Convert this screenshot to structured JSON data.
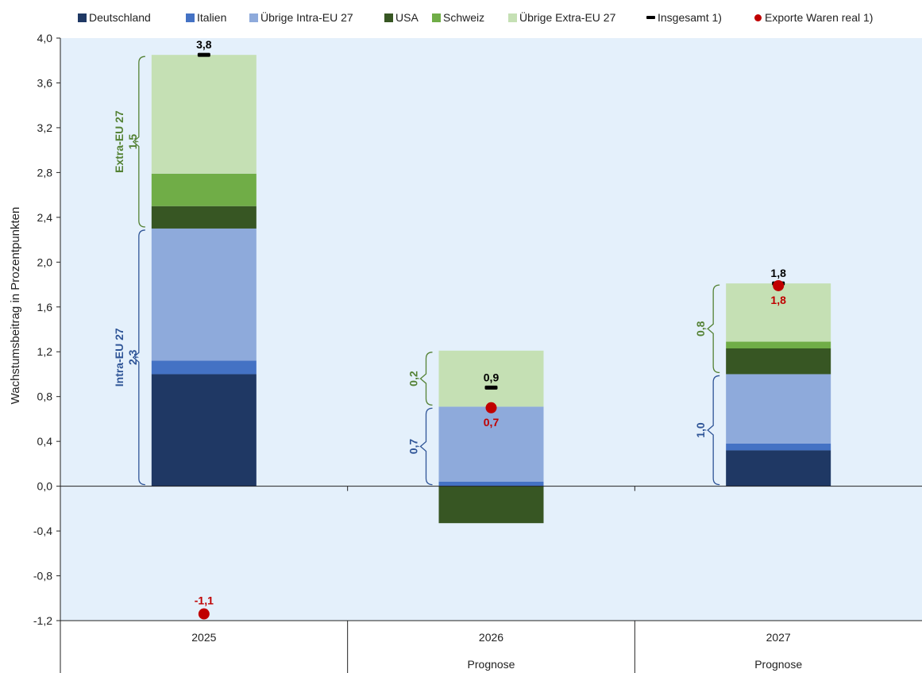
{
  "chart_data": {
    "type": "bar",
    "stacked": true,
    "ylabel": "Wachstumsbeitrag in Prozentpunkten",
    "ylim": [
      -1.2,
      4.0
    ],
    "yticks": [
      "-1,2",
      "-0,8",
      "-0,4",
      "0,0",
      "0,4",
      "0,8",
      "1,2",
      "1,6",
      "2,0",
      "2,4",
      "2,8",
      "3,2",
      "3,6",
      "4,0"
    ],
    "ytick_values": [
      -1.2,
      -0.8,
      -0.4,
      0.0,
      0.4,
      0.8,
      1.2,
      1.6,
      2.0,
      2.4,
      2.8,
      3.2,
      3.6,
      4.0
    ],
    "categories": [
      "2025",
      "2026",
      "2027"
    ],
    "category_sublabels": [
      "",
      "Prognose",
      "Prognose"
    ],
    "grid": false,
    "legend_position": "top",
    "series": [
      {
        "name": "Deutschland",
        "color": "#1f3864",
        "values": [
          1.0,
          0.0,
          0.32
        ]
      },
      {
        "name": "Italien",
        "color": "#4472c4",
        "values": [
          0.12,
          0.04,
          0.06
        ]
      },
      {
        "name": "Übrige Intra-EU 27",
        "color": "#8eaadb",
        "values": [
          1.18,
          0.67,
          0.62
        ]
      },
      {
        "name": "USA",
        "color": "#375623",
        "values": [
          0.2,
          -0.33,
          0.23
        ]
      },
      {
        "name": "Schweiz",
        "color": "#70ad47",
        "values": [
          0.29,
          0.0,
          0.06
        ]
      },
      {
        "name": "Übrige Extra-EU 27",
        "color": "#c5e0b4",
        "values": [
          1.06,
          0.5,
          0.52
        ]
      }
    ],
    "totals": {
      "name": "Insgesamt 1)",
      "color": "#000000",
      "values": [
        3.85,
        0.88,
        1.81
      ],
      "labels": [
        "3,8",
        "0,9",
        "1,8"
      ]
    },
    "exports": {
      "name": "Exporte Waren real 1)",
      "color": "#c00000",
      "values": [
        -1.14,
        0.7,
        1.79
      ],
      "labels": [
        "-1,1",
        "0,7",
        "1,8"
      ]
    },
    "groups": [
      {
        "category": "2025",
        "name": "Intra-EU 27",
        "value": "2,3",
        "color": "#2f5597",
        "from": 0.0,
        "to": 2.3
      },
      {
        "category": "2025",
        "name": "Extra-EU 27",
        "value": "1,5",
        "color": "#548235",
        "from": 2.3,
        "to": 3.85
      },
      {
        "category": "2026",
        "name": "",
        "value": "0,7",
        "color": "#2f5597",
        "from": 0.0,
        "to": 0.71
      },
      {
        "category": "2026",
        "name": "",
        "value": "0,2",
        "color": "#548235",
        "from": 0.71,
        "to": 1.21
      },
      {
        "category": "2027",
        "name": "",
        "value": "1,0",
        "color": "#2f5597",
        "from": 0.0,
        "to": 1.0
      },
      {
        "category": "2027",
        "name": "",
        "value": "0,8",
        "color": "#548235",
        "from": 1.0,
        "to": 1.81
      }
    ]
  }
}
